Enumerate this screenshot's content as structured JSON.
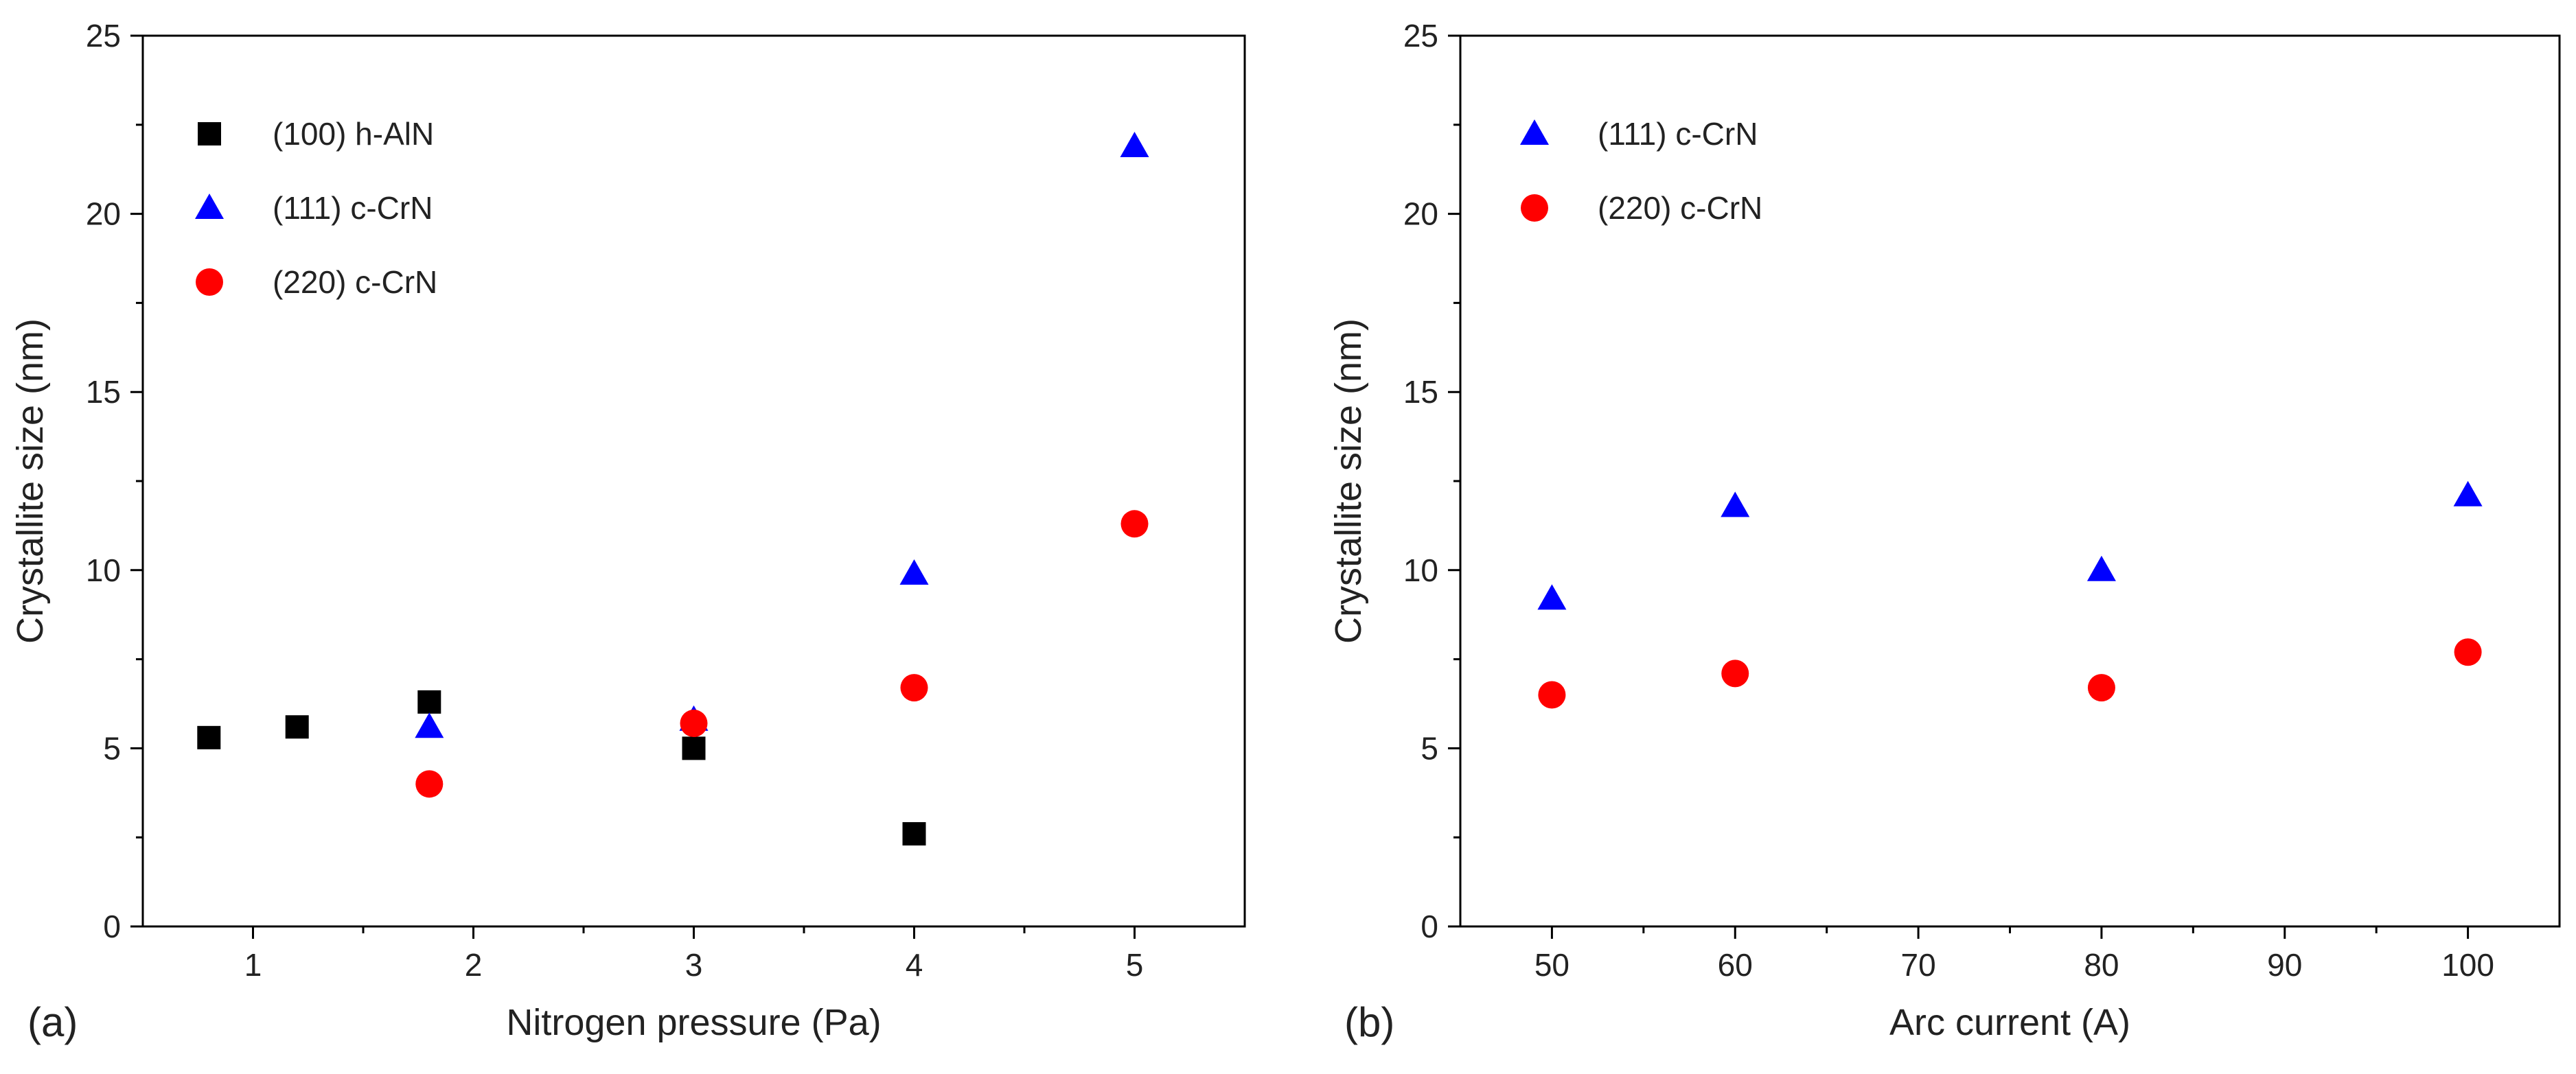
{
  "chart_data": [
    {
      "type": "scatter",
      "panel_label": "(a)",
      "title": "",
      "xlabel": "Nitrogen pressure (Pa)",
      "ylabel": "Crystallite size (nm)",
      "xlim": [
        0.5,
        5.5
      ],
      "ylim": [
        0,
        25
      ],
      "x_ticks": [
        1,
        2,
        3,
        4,
        5
      ],
      "x_tick_labels": [
        "1",
        "2",
        "3",
        "4",
        "5"
      ],
      "x_minor_ticks": [
        1.5,
        2.5,
        3.5,
        4.5
      ],
      "y_ticks": [
        0,
        5,
        10,
        15,
        20,
        25
      ],
      "y_tick_labels": [
        "0",
        "5",
        "10",
        "15",
        "20",
        "25"
      ],
      "grid": false,
      "legend_position": "top-left",
      "series": [
        {
          "name": "(100) h-AlN",
          "marker": "square",
          "color": "#000000",
          "points": [
            {
              "x": 0.8,
              "y": 5.3
            },
            {
              "x": 1.2,
              "y": 5.6
            },
            {
              "x": 1.8,
              "y": 6.3
            },
            {
              "x": 3.0,
              "y": 5.0
            },
            {
              "x": 4.0,
              "y": 2.6
            }
          ]
        },
        {
          "name": "(111) c-CrN",
          "marker": "triangle",
          "color": "#0000ff",
          "points": [
            {
              "x": 1.8,
              "y": 5.6
            },
            {
              "x": 3.0,
              "y": 5.8
            },
            {
              "x": 4.0,
              "y": 9.9
            },
            {
              "x": 5.0,
              "y": 21.9
            }
          ]
        },
        {
          "name": "(220) c-CrN",
          "marker": "circle",
          "color": "#ff0000",
          "points": [
            {
              "x": 1.8,
              "y": 4.0
            },
            {
              "x": 3.0,
              "y": 5.7
            },
            {
              "x": 4.0,
              "y": 6.7
            },
            {
              "x": 5.0,
              "y": 11.3
            }
          ]
        }
      ]
    },
    {
      "type": "scatter",
      "panel_label": "(b)",
      "title": "",
      "xlabel": "Arc current (A)",
      "ylabel": "Crystallite size (nm)",
      "xlim": [
        45,
        105
      ],
      "ylim": [
        0,
        25
      ],
      "x_ticks": [
        50,
        60,
        70,
        80,
        90,
        100
      ],
      "x_tick_labels": [
        "50",
        "60",
        "70",
        "80",
        "90",
        "100"
      ],
      "x_minor_ticks": [
        55,
        65,
        75,
        85,
        95
      ],
      "y_ticks": [
        0,
        5,
        10,
        15,
        20,
        25
      ],
      "y_tick_labels": [
        "0",
        "5",
        "10",
        "15",
        "20",
        "25"
      ],
      "grid": false,
      "legend_position": "top-left",
      "series": [
        {
          "name": "(111) c-CrN",
          "marker": "triangle",
          "color": "#0000ff",
          "points": [
            {
              "x": 50,
              "y": 9.2
            },
            {
              "x": 60,
              "y": 11.8
            },
            {
              "x": 80,
              "y": 10.0
            },
            {
              "x": 100,
              "y": 12.1
            }
          ]
        },
        {
          "name": "(220) c-CrN",
          "marker": "circle",
          "color": "#ff0000",
          "points": [
            {
              "x": 50,
              "y": 6.5
            },
            {
              "x": 60,
              "y": 7.1
            },
            {
              "x": 80,
              "y": 6.7
            },
            {
              "x": 100,
              "y": 7.7
            }
          ]
        }
      ]
    }
  ]
}
